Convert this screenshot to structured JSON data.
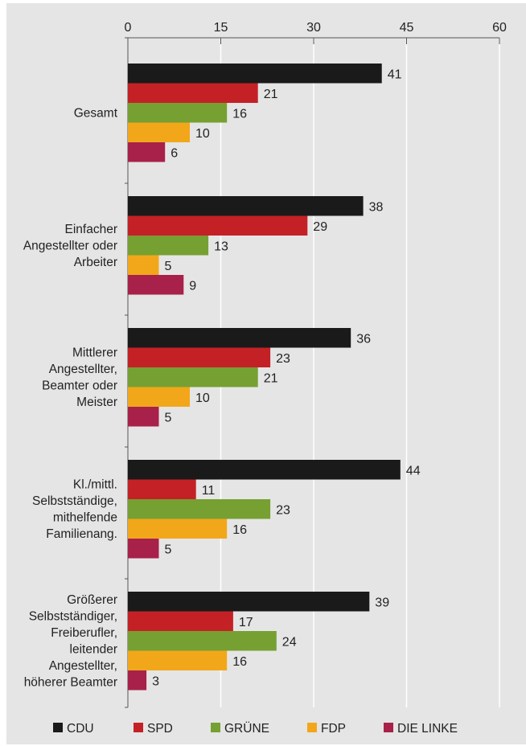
{
  "chart_data": {
    "type": "bar",
    "orientation": "horizontal",
    "title": "",
    "xlabel": "",
    "ylabel": "",
    "xlim": [
      0,
      60
    ],
    "x_ticks": [
      0,
      15,
      30,
      45,
      60
    ],
    "x_axis_position": "top",
    "grid": true,
    "legend_position": "bottom",
    "categories": [
      "Gesamt",
      "Einfacher Angestellter oder Arbeiter",
      "Mittlerer Angestellter, Beamter oder Meister",
      "Kl./mittl. Selbstständige, mithelfende Familienang.",
      "Größerer Selbstständiger, Freiberufler, leitender Angestellter, höherer Beamter"
    ],
    "category_label_lines": [
      [
        "Gesamt"
      ],
      [
        "Einfacher",
        "Angestellter oder",
        "Arbeiter"
      ],
      [
        "Mittlerer",
        "Angestellter,",
        "Beamter oder",
        "Meister"
      ],
      [
        "Kl./mittl.",
        "Selbstständige,",
        "mithelfende",
        "Familienang."
      ],
      [
        "Größerer",
        "Selbstständiger,",
        "Freiberufler,",
        "leitender",
        "Angestellter,",
        "höherer Beamter"
      ]
    ],
    "series": [
      {
        "name": "CDU",
        "color": "#1a1a1a",
        "values": [
          41,
          38,
          36,
          44,
          39
        ]
      },
      {
        "name": "SPD",
        "color": "#c42127",
        "values": [
          21,
          29,
          23,
          11,
          17
        ]
      },
      {
        "name": "GRÜNE",
        "color": "#76a032",
        "values": [
          16,
          13,
          21,
          23,
          24
        ]
      },
      {
        "name": "FDP",
        "color": "#f2a71b",
        "values": [
          10,
          5,
          10,
          16,
          16
        ]
      },
      {
        "name": "DIE LINKE",
        "color": "#a8214a",
        "values": [
          6,
          9,
          5,
          5,
          3
        ]
      }
    ]
  }
}
